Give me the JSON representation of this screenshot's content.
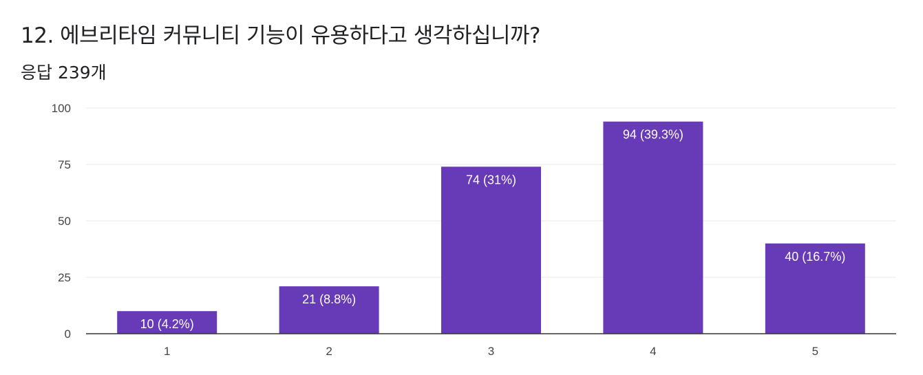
{
  "question": {
    "title": "12. 에브리타임 커뮤니티 기능이 유용하다고 생각하십니까?",
    "responses": "응답 239개"
  },
  "colors": {
    "bar": "#673ab7",
    "grid": "#e8e8e8",
    "axis": "#333333"
  },
  "chart_data": {
    "type": "bar",
    "title": "12. 에브리타임 커뮤니티 기능이 유용하다고 생각하십니까?",
    "categories": [
      "1",
      "2",
      "3",
      "4",
      "5"
    ],
    "values": [
      10,
      21,
      74,
      94,
      40
    ],
    "data_labels": [
      "10 (4.2%)",
      "21 (8.8%)",
      "74 (31%)",
      "94 (39.3%)",
      "40 (16.7%)"
    ],
    "ylim": [
      0,
      100
    ],
    "yticks": [
      0,
      25,
      50,
      75,
      100
    ],
    "grid": true,
    "legend": "none"
  }
}
